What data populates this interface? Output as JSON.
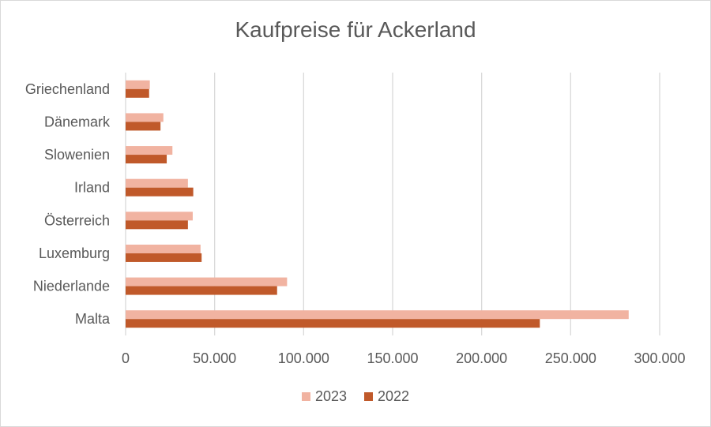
{
  "chart_data": {
    "type": "bar",
    "orientation": "horizontal",
    "title": "Kaufpreise für Ackerland",
    "categories": [
      "Griechenland",
      "Dänemark",
      "Slowenien",
      "Irland",
      "Österreich",
      "Luxemburg",
      "Niederlande",
      "Malta"
    ],
    "series": [
      {
        "name": "2023",
        "color": "#F1B3A1",
        "values": [
          13600,
          21200,
          26300,
          35000,
          37700,
          42100,
          90700,
          282600
        ]
      },
      {
        "name": "2022",
        "color": "#C0592A",
        "values": [
          13200,
          19600,
          23100,
          38000,
          35000,
          42700,
          85100,
          232700
        ]
      }
    ],
    "xlim": [
      0,
      300000
    ],
    "xticks": [
      0,
      50000,
      100000,
      150000,
      200000,
      250000,
      300000
    ],
    "xtick_labels": [
      "0",
      "50.000",
      "100.000",
      "150.000",
      "200.000",
      "250.000",
      "300.000"
    ],
    "grid": "vertical",
    "legend": "bottom",
    "xlabel": "",
    "ylabel": ""
  }
}
